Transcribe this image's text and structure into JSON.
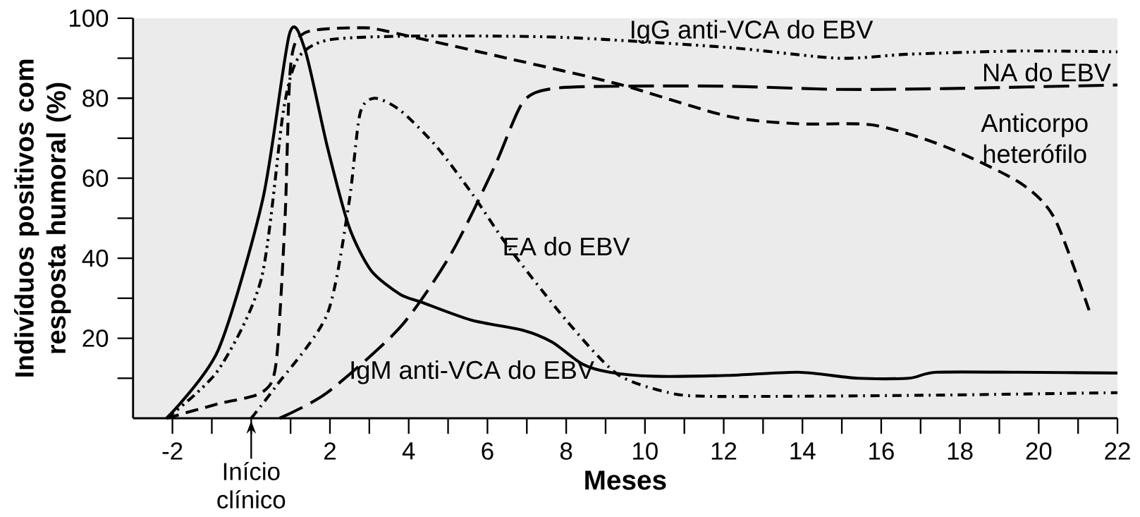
{
  "chart_data": {
    "type": "line",
    "xlabel": "Meses",
    "ylabel": "Indivíduos positivos com resposta humoral (%)",
    "xlim": [
      -3,
      22
    ],
    "ylim": [
      0,
      100
    ],
    "xticks": [
      -2,
      2,
      4,
      6,
      8,
      10,
      12,
      14,
      16,
      18,
      20,
      22
    ],
    "yticks": [
      20,
      40,
      60,
      80,
      100
    ],
    "grid": false,
    "legend": false,
    "marker": "none",
    "series": [
      {
        "name": "IgM anti-VCA do EBV",
        "color": "#000000",
        "line_style": "solid",
        "x": [
          -2.15,
          -0.84,
          0.3,
          0.97,
          1.37,
          1.93,
          2.48,
          3.04,
          3.78,
          4.33,
          5.6,
          6.9,
          7.65,
          8.4,
          9.1,
          10.2,
          12.1,
          13.9,
          15.4,
          16.7,
          17.4,
          19.5,
          22
        ],
        "values": [
          0,
          17,
          55,
          96,
          92,
          68,
          48,
          37,
          31,
          29,
          24.5,
          22,
          19,
          13.6,
          11.5,
          10.5,
          10.7,
          11.5,
          10,
          10,
          11.5,
          11.5,
          11.3
        ]
      },
      {
        "name": "IgG anti-VCA do EBV",
        "color": "#000000",
        "line_style": "dash dot dot",
        "x": [
          -2.15,
          -0.84,
          0.26,
          0.82,
          1.19,
          1.93,
          3.78,
          6.5,
          8.4,
          12.1,
          14.9,
          16.7,
          19.5,
          22
        ],
        "values": [
          0,
          12,
          35,
          77,
          90,
          94.5,
          95.5,
          95.5,
          95,
          92.7,
          90,
          91,
          91.8,
          91.6
        ]
      },
      {
        "name": "Anticorpo heterófilo",
        "color": "#000000",
        "line_style": "dashed",
        "x": [
          -2.15,
          -0.84,
          0.26,
          0.63,
          0.86,
          1.0,
          1.37,
          2.85,
          3.6,
          6.5,
          9.3,
          12.1,
          13.9,
          15.8,
          17.6,
          19.5,
          20.4,
          21.3
        ],
        "values": [
          0,
          3.6,
          6.4,
          13.6,
          50,
          88,
          96.4,
          97.6,
          96.4,
          90,
          83.6,
          75.5,
          73.6,
          73.3,
          68,
          59,
          50,
          26.4
        ]
      },
      {
        "name": "EA do EBV",
        "color": "#000000",
        "line_style": "dash dot",
        "x": [
          0,
          0.63,
          1.93,
          2.48,
          2.76,
          3.13,
          3.78,
          4.7,
          5.62,
          6.54,
          8.0,
          9.3,
          10.6,
          11.5,
          13.9,
          17.6,
          22
        ],
        "values": [
          0,
          8,
          26,
          53.6,
          76,
          80,
          77,
          68,
          56,
          42.7,
          24.5,
          11,
          6.4,
          5.5,
          5.5,
          5.8,
          6.4
        ]
      },
      {
        "name": "NA do EBV",
        "color": "#000000",
        "line_style": "long dashed",
        "x": [
          0.72,
          1.93,
          3.78,
          5.07,
          6.17,
          6.9,
          7.65,
          9.3,
          12.1,
          14.9,
          17.6,
          22
        ],
        "values": [
          0,
          6.4,
          22.7,
          41,
          62.7,
          79,
          82.4,
          83,
          83,
          82.2,
          82.4,
          83.3
        ]
      }
    ],
    "annotations": [
      {
        "text": "Início clínico",
        "x": 0,
        "y": 0
      }
    ]
  }
}
